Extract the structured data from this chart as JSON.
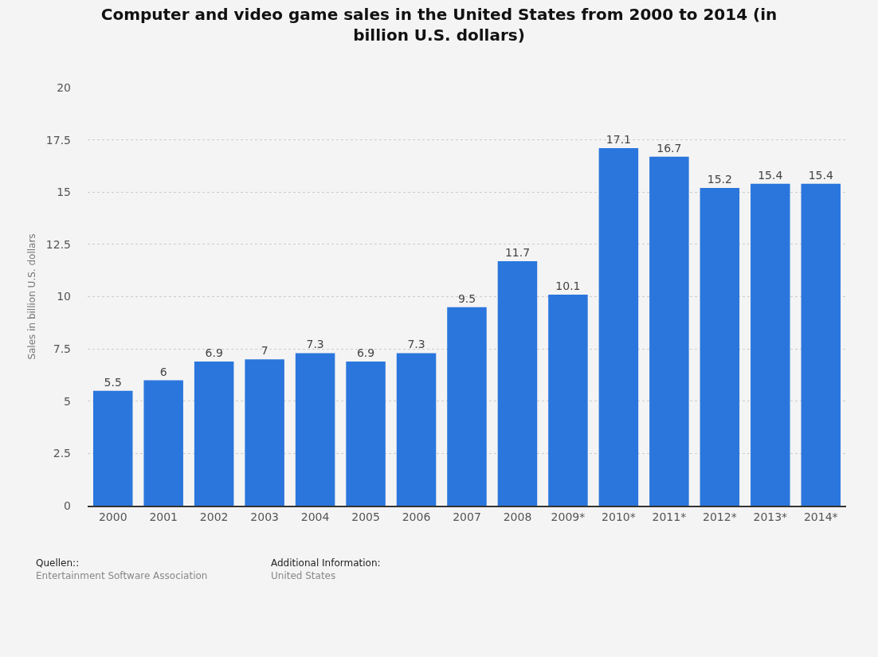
{
  "chart_data": {
    "type": "bar",
    "title": "Computer and video game sales in the United States from 2000 to 2014 (in billion U.S. dollars)",
    "ylabel": "Sales in billion U.S. dollars",
    "categories": [
      "2000",
      "2001",
      "2002",
      "2003",
      "2004",
      "2005",
      "2006",
      "2007",
      "2008",
      "2009*",
      "2010*",
      "2011*",
      "2012*",
      "2013*",
      "2014*"
    ],
    "values": [
      5.5,
      6,
      6.9,
      7,
      7.3,
      6.9,
      7.3,
      9.5,
      11.7,
      10.1,
      17.1,
      16.7,
      15.2,
      15.4,
      15.4
    ],
    "color": "#2a76dd",
    "ylim": [
      0,
      20
    ],
    "yticks": [
      0,
      2.5,
      5,
      7.5,
      10,
      12.5,
      15,
      17.5,
      20
    ],
    "grid": "y",
    "data_labels": true,
    "legend": false,
    "annotations": [
      "Quellen::\nEntertainment Software Association",
      "Additional Information:\nUnited States"
    ]
  }
}
